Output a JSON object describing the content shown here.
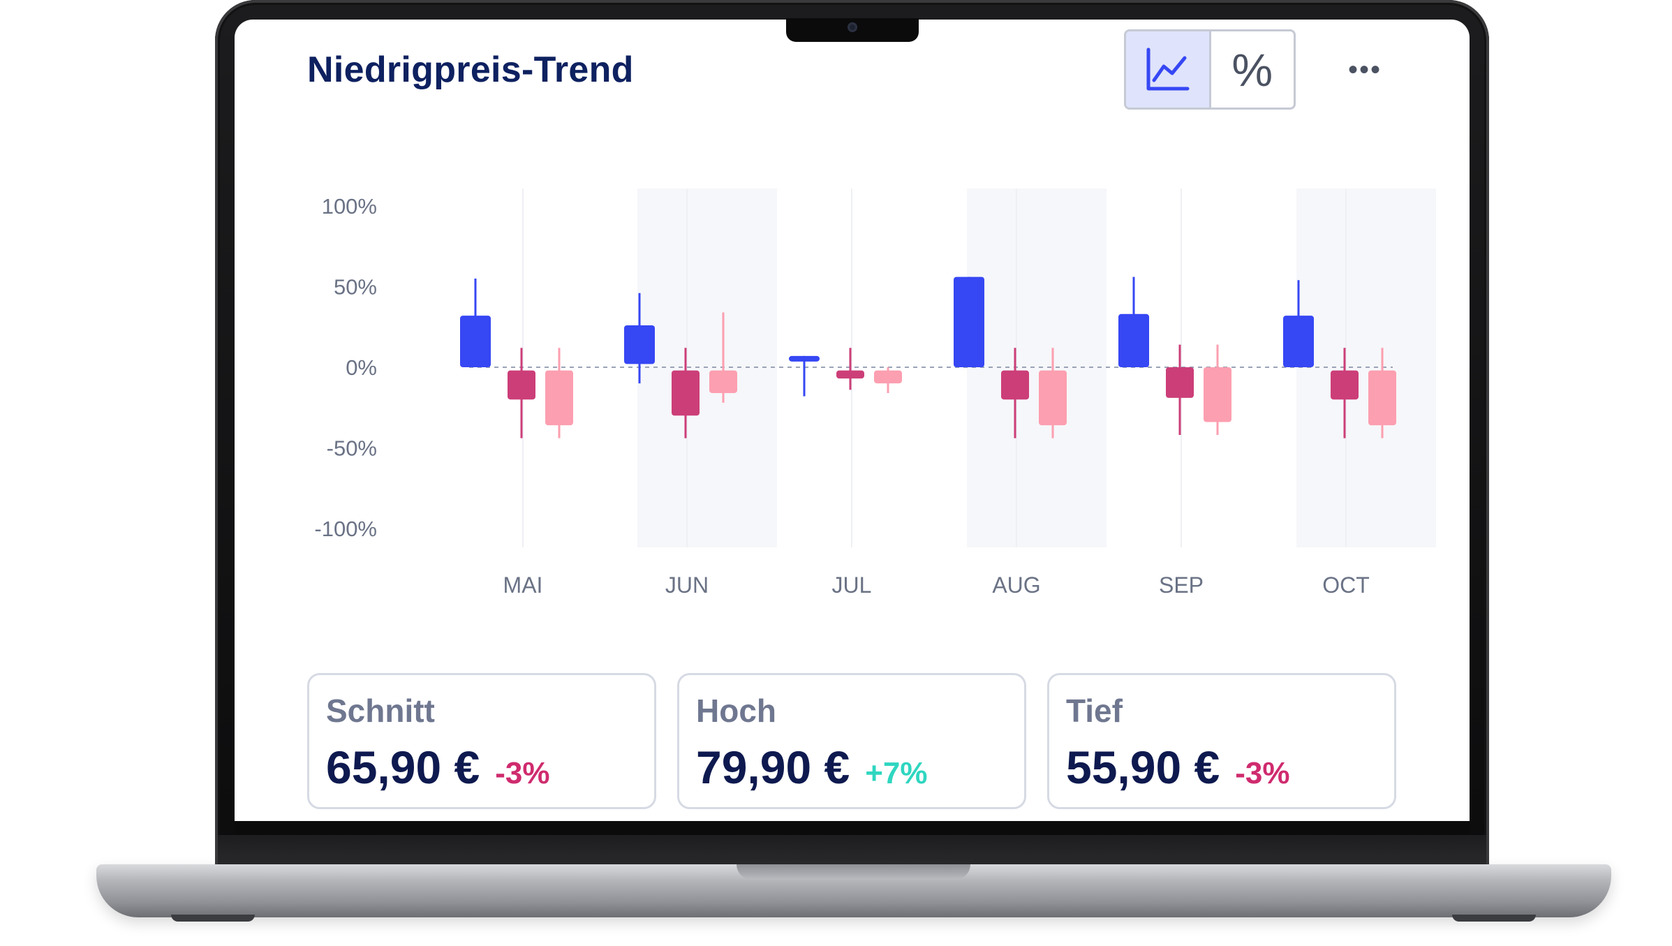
{
  "header": {
    "title": "Niedrigpreis-Trend",
    "toggle": {
      "line_icon": "line-chart-icon",
      "percent_label": "%",
      "active": "line"
    },
    "more_label": "•••"
  },
  "chart_data": {
    "type": "candlestick",
    "y_ticks": [
      "100%",
      "50%",
      "0%",
      "-50%",
      "-100%"
    ],
    "ylim": [
      -100,
      100
    ],
    "categories": [
      "MAI",
      "JUN",
      "JUL",
      "AUG",
      "SEP",
      "OCT"
    ],
    "shaded_months": [
      "JUN",
      "AUG",
      "OCT"
    ],
    "baseline": 0,
    "groups": [
      {
        "month": "MAI",
        "candles": [
          {
            "color": "#3647f4",
            "open": 0,
            "close": 32,
            "high": 55,
            "low": 0
          },
          {
            "color": "#cc3e78",
            "open": -2,
            "close": -20,
            "high": 12,
            "low": -44
          },
          {
            "color": "#fc9fb0",
            "open": -2,
            "close": -36,
            "high": 12,
            "low": -44
          }
        ]
      },
      {
        "month": "JUN",
        "candles": [
          {
            "color": "#3647f4",
            "open": 2,
            "close": 26,
            "high": 46,
            "low": -10
          },
          {
            "color": "#cc3e78",
            "open": -2,
            "close": -30,
            "high": 12,
            "low": -44
          },
          {
            "color": "#fc9fb0",
            "open": -2,
            "close": -16,
            "high": 34,
            "low": -22
          }
        ]
      },
      {
        "month": "JUL",
        "candles": [
          {
            "color": "#3647f4",
            "open": 4,
            "close": 7,
            "high": 7,
            "low": -18
          },
          {
            "color": "#cc3e78",
            "open": -2,
            "close": -7,
            "high": 12,
            "low": -14
          },
          {
            "color": "#fc9fb0",
            "open": -2,
            "close": -10,
            "high": 0,
            "low": -16
          }
        ]
      },
      {
        "month": "AUG",
        "candles": [
          {
            "color": "#3647f4",
            "open": 0,
            "close": 56,
            "high": 56,
            "low": 0
          },
          {
            "color": "#cc3e78",
            "open": -2,
            "close": -20,
            "high": 12,
            "low": -44
          },
          {
            "color": "#fc9fb0",
            "open": -2,
            "close": -36,
            "high": 12,
            "low": -44
          }
        ]
      },
      {
        "month": "SEP",
        "candles": [
          {
            "color": "#3647f4",
            "open": 0,
            "close": 33,
            "high": 56,
            "low": 0
          },
          {
            "color": "#cc3e78",
            "open": 0,
            "close": -19,
            "high": 14,
            "low": -42
          },
          {
            "color": "#fc9fb0",
            "open": 0,
            "close": -34,
            "high": 14,
            "low": -42
          }
        ]
      },
      {
        "month": "OCT",
        "candles": [
          {
            "color": "#3647f4",
            "open": 0,
            "close": 32,
            "high": 54,
            "low": 0
          },
          {
            "color": "#cc3e78",
            "open": -2,
            "close": -20,
            "high": 12,
            "low": -44
          },
          {
            "color": "#fc9fb0",
            "open": -2,
            "close": -36,
            "high": 12,
            "low": -44
          }
        ]
      }
    ]
  },
  "stats": [
    {
      "label": "Schnitt",
      "value": "65,90 €",
      "delta": "-3%",
      "trend": "down"
    },
    {
      "label": "Hoch",
      "value": "79,90 €",
      "delta": "+7%",
      "trend": "up"
    },
    {
      "label": "Tief",
      "value": "55,90 €",
      "delta": "-3%",
      "trend": "down"
    }
  ],
  "colors": {
    "title": "#0e2160",
    "accent_blue": "#3647f4",
    "accent_magenta": "#cc3e78",
    "accent_pink": "#fc9fb0",
    "positive": "#2fd6c0",
    "negative": "#cf2b6e"
  }
}
